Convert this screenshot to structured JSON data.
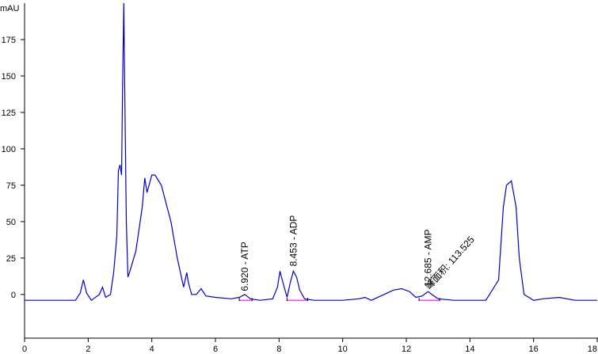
{
  "chart_data": {
    "type": "line",
    "ylabel": "mAU",
    "xlim": [
      0,
      18
    ],
    "ylim": [
      -30,
      200
    ],
    "xticks": [
      "0",
      "2",
      "4",
      "6",
      "8",
      "10",
      "12",
      "14",
      "16",
      "18"
    ],
    "xtick_values": [
      0,
      2,
      4,
      6,
      8,
      10,
      12,
      14,
      16,
      18
    ],
    "yticks": [
      "0",
      "25",
      "50",
      "75",
      "100",
      "125",
      "150",
      "175"
    ],
    "ytick_values": [
      0,
      25,
      50,
      75,
      100,
      125,
      150,
      175
    ],
    "trace_color": "#0000cc",
    "integration_color": "#ff00ff",
    "series": [
      {
        "x": [
          0.0,
          0.8,
          1.6,
          1.75,
          1.85,
          1.95,
          2.1,
          2.35,
          2.45,
          2.55,
          2.7,
          2.8,
          2.9,
          2.95,
          3.0,
          3.05,
          3.08,
          3.12,
          3.15,
          3.2,
          3.25,
          3.3,
          3.5,
          3.7,
          3.78,
          3.85,
          4.0,
          4.1,
          4.3,
          4.6,
          4.8,
          5.0,
          5.05,
          5.1,
          5.15,
          5.25,
          5.4,
          5.55,
          5.7,
          6.0,
          6.5,
          6.75,
          6.92,
          7.1,
          7.4,
          7.8,
          7.95,
          8.03,
          8.1,
          8.25,
          8.35,
          8.45,
          8.55,
          8.65,
          8.8,
          9.1,
          9.6,
          10.0,
          10.5,
          10.7,
          10.9,
          11.3,
          11.6,
          11.85,
          12.1,
          12.3,
          12.5,
          12.685,
          12.8,
          13.0,
          13.5,
          14.0,
          14.5,
          14.9,
          15.05,
          15.15,
          15.3,
          15.45,
          15.55,
          15.7,
          16.0,
          16.3,
          16.8,
          17.3,
          18.0
        ],
        "values": [
          -4,
          -4,
          -4,
          1,
          10,
          1,
          -4,
          0,
          5,
          -2,
          0,
          15,
          40,
          85,
          89,
          82,
          140,
          200,
          140,
          50,
          12,
          15,
          30,
          60,
          80,
          70,
          82,
          82,
          75,
          50,
          25,
          5,
          10,
          15,
          8,
          0,
          0,
          4,
          -1,
          -2,
          -3,
          -2,
          0,
          -3,
          -4,
          -3,
          5,
          16,
          10,
          -2,
          8,
          16,
          12,
          3,
          -3,
          -4,
          -4,
          -4,
          -3,
          -2,
          -4,
          0,
          3,
          4,
          2,
          -2,
          -1,
          2,
          0,
          -3,
          -4,
          -4,
          -4,
          10,
          60,
          75,
          78,
          60,
          25,
          0,
          -4,
          -3,
          -2,
          -4,
          -4
        ]
      }
    ],
    "peaks": [
      {
        "label": "6.920 -  ATP",
        "rt": 6.92,
        "y": -1,
        "base_start": 6.75,
        "base_end": 7.15
      },
      {
        "label": "8.453 -  ADP",
        "rt": 8.453,
        "y": 16,
        "base_start": 8.25,
        "base_end": 8.9
      },
      {
        "label": "12.685 -  AMP",
        "area_label": "峰面积: 113.525",
        "rt": 12.685,
        "y": 2,
        "base_start": 12.4,
        "base_end": 13.05
      }
    ]
  }
}
